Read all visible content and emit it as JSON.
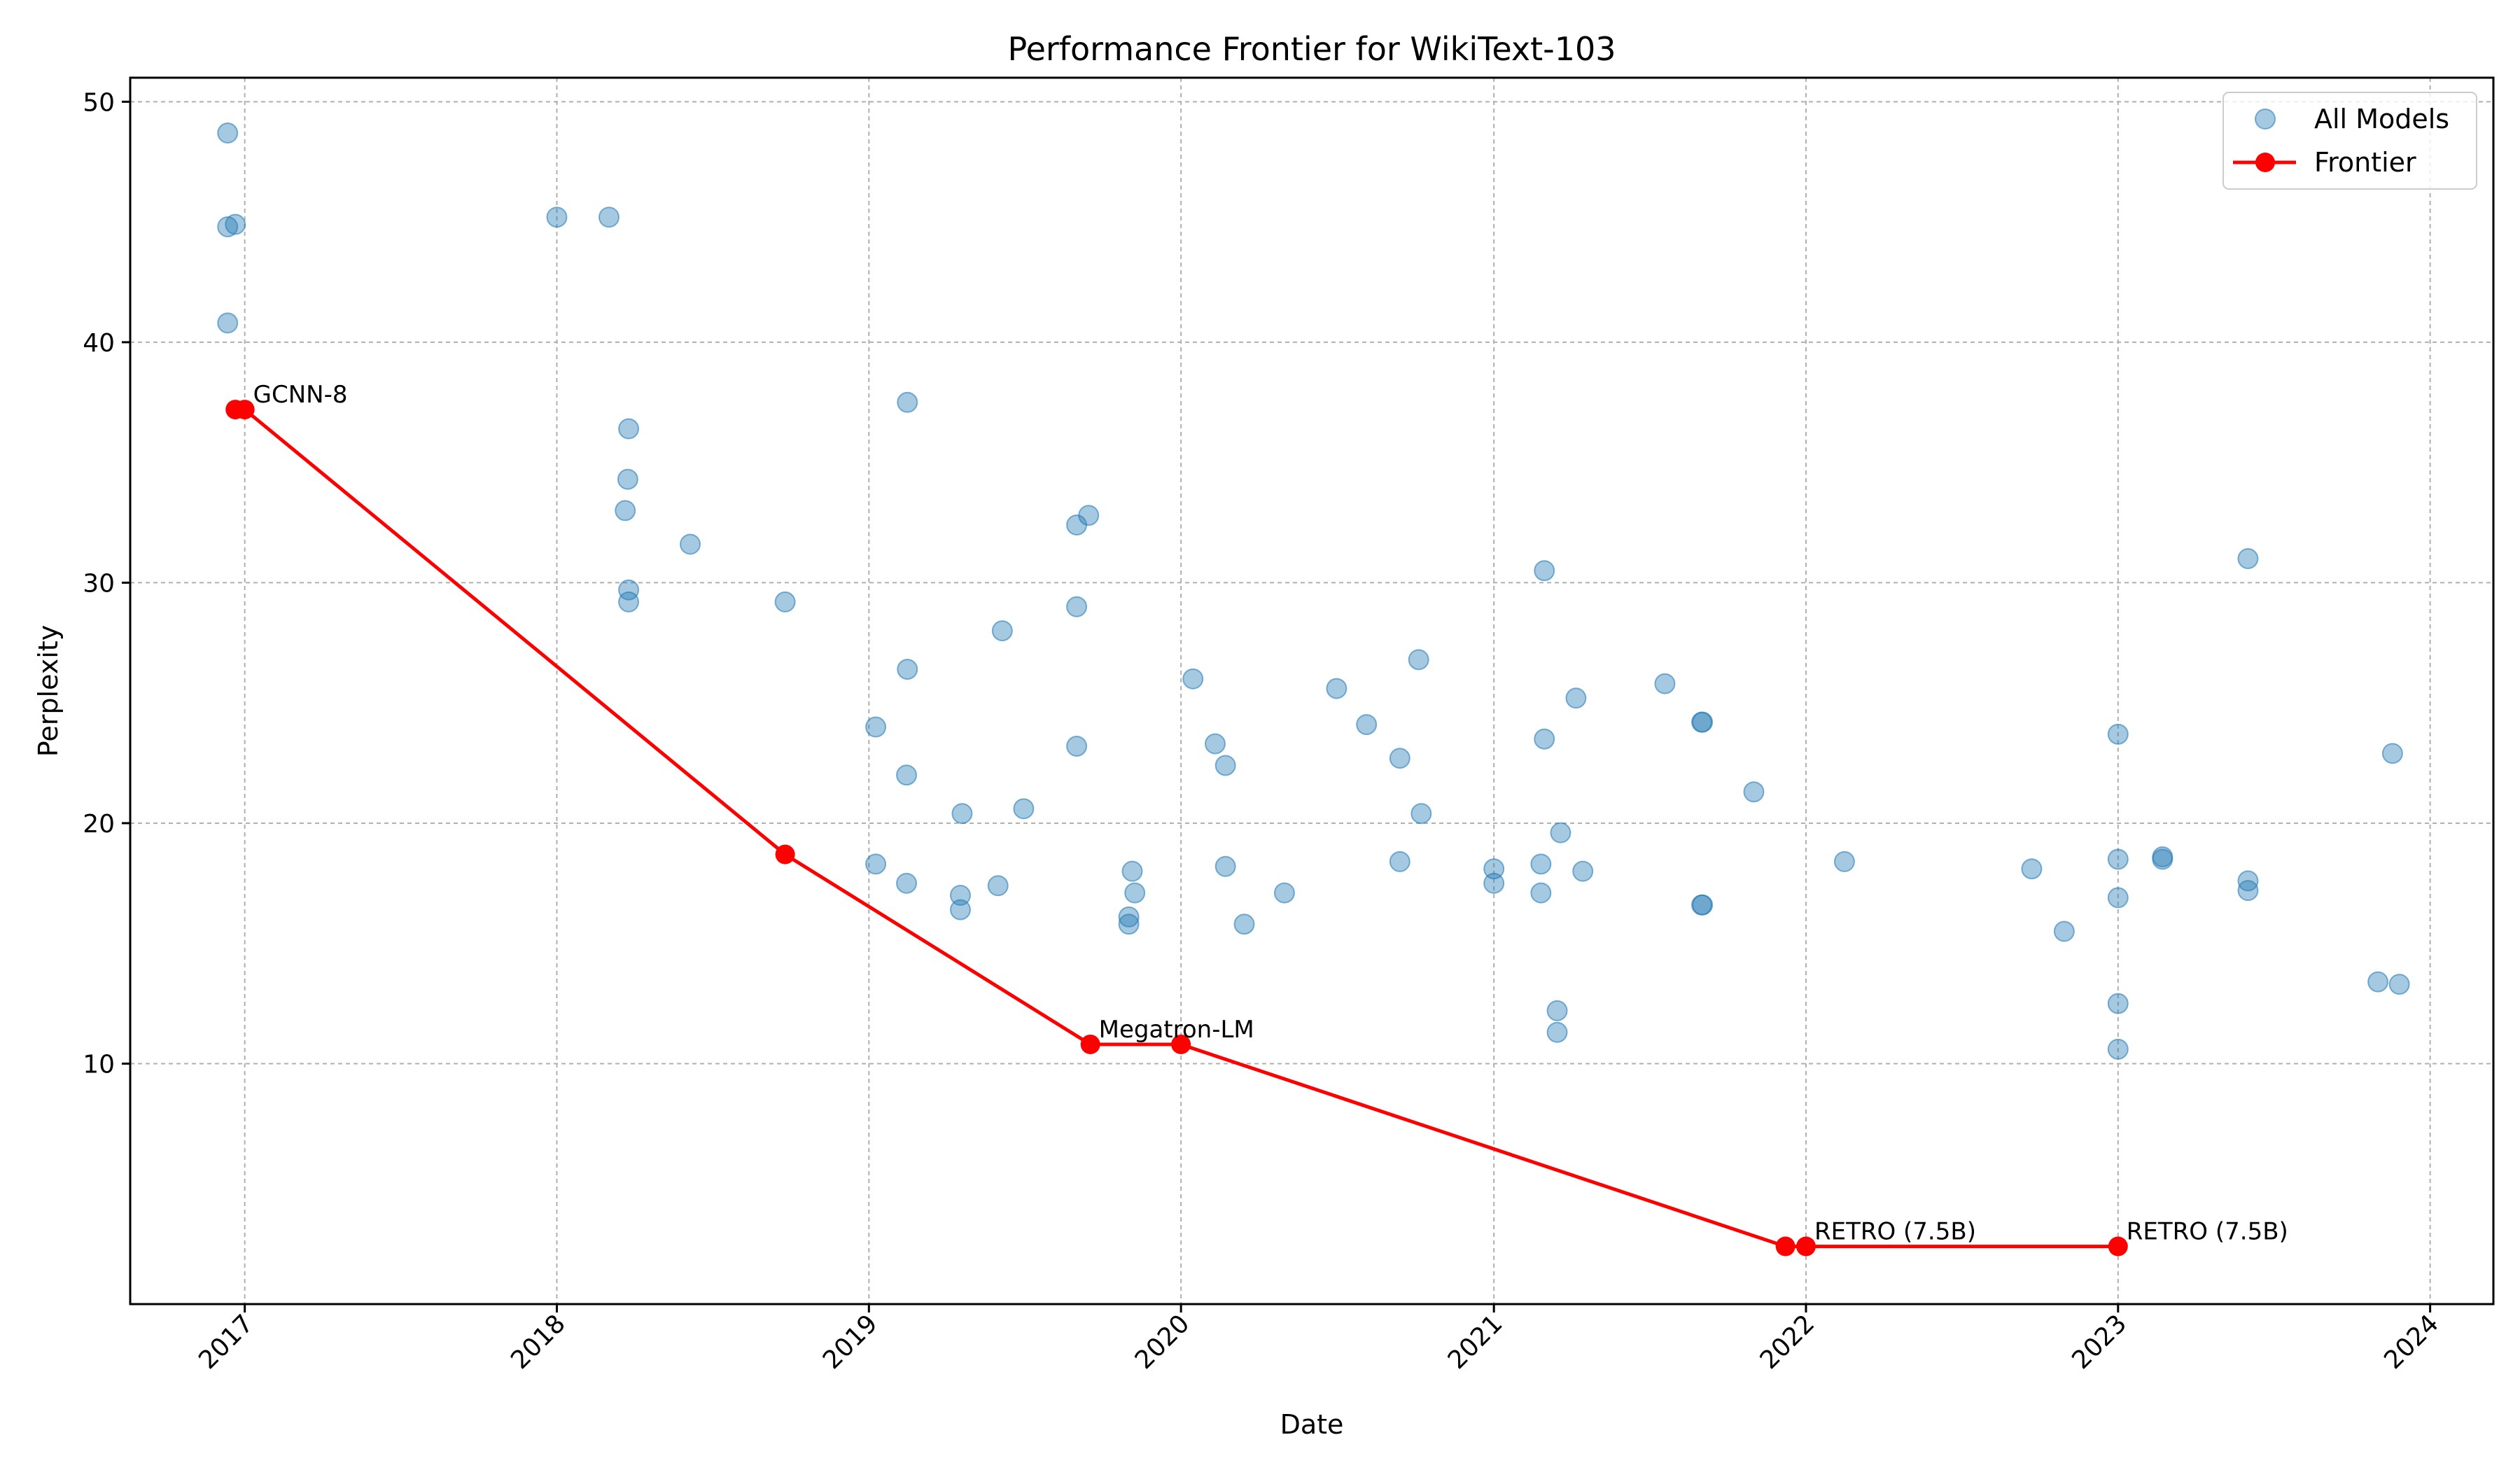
{
  "chart_data": {
    "type": "scatter",
    "title": "Performance Frontier for WikiText-103",
    "xlabel": "Date",
    "ylabel": "Perplexity",
    "xlim": [
      "2016-08-20",
      "2024-03-15"
    ],
    "ylim": [
      0,
      51
    ],
    "x_ticks": [
      "2017",
      "2018",
      "2019",
      "2020",
      "2021",
      "2022",
      "2023",
      "2024"
    ],
    "y_ticks": [
      10,
      20,
      30,
      40,
      50
    ],
    "grid": true,
    "legend_position": "top-right",
    "series": [
      {
        "name": "All Models",
        "kind": "scatter",
        "color": "#1f77b4",
        "points": [
          [
            "2016-12-12",
            48.7
          ],
          [
            "2016-12-12",
            44.8
          ],
          [
            "2016-12-21",
            44.9
          ],
          [
            "2016-12-12",
            40.8
          ],
          [
            "2018-01-01",
            45.2
          ],
          [
            "2018-03-03",
            45.2
          ],
          [
            "2018-03-26",
            36.4
          ],
          [
            "2018-03-25",
            34.3
          ],
          [
            "2018-03-22",
            33.0
          ],
          [
            "2018-03-26",
            29.7
          ],
          [
            "2018-03-26",
            29.2
          ],
          [
            "2018-06-06",
            31.6
          ],
          [
            "2018-09-25",
            29.2
          ],
          [
            "2019-01-09",
            24.0
          ],
          [
            "2019-01-09",
            18.3
          ],
          [
            "2019-02-15",
            37.5
          ],
          [
            "2019-02-15",
            26.4
          ],
          [
            "2019-02-14",
            22.0
          ],
          [
            "2019-02-14",
            17.5
          ],
          [
            "2019-04-20",
            20.4
          ],
          [
            "2019-04-18",
            17.0
          ],
          [
            "2019-04-18",
            16.4
          ],
          [
            "2019-06-06",
            28.0
          ],
          [
            "2019-06-01",
            17.4
          ],
          [
            "2019-07-01",
            20.6
          ],
          [
            "2019-09-01",
            32.4
          ],
          [
            "2019-09-15",
            32.8
          ],
          [
            "2019-09-01",
            29.0
          ],
          [
            "2019-09-01",
            23.2
          ],
          [
            "2019-11-05",
            18.0
          ],
          [
            "2019-11-08",
            17.1
          ],
          [
            "2019-11-01",
            16.1
          ],
          [
            "2019-11-01",
            15.8
          ],
          [
            "2020-01-15",
            26.0
          ],
          [
            "2020-02-10",
            23.3
          ],
          [
            "2020-02-22",
            22.4
          ],
          [
            "2020-02-22",
            18.2
          ],
          [
            "2020-03-15",
            15.8
          ],
          [
            "2020-05-01",
            17.1
          ],
          [
            "2020-07-01",
            25.6
          ],
          [
            "2020-08-05",
            24.1
          ],
          [
            "2020-09-13",
            22.7
          ],
          [
            "2020-09-13",
            18.4
          ],
          [
            "2020-10-05",
            26.8
          ],
          [
            "2020-10-08",
            20.4
          ],
          [
            "2021-01-01",
            18.1
          ],
          [
            "2021-01-01",
            17.5
          ],
          [
            "2021-02-25",
            18.3
          ],
          [
            "2021-02-25",
            17.1
          ],
          [
            "2021-03-01",
            30.5
          ],
          [
            "2021-03-01",
            23.5
          ],
          [
            "2021-03-20",
            19.6
          ],
          [
            "2021-04-07",
            25.2
          ],
          [
            "2021-04-15",
            18.0
          ],
          [
            "2021-03-16",
            12.2
          ],
          [
            "2021-03-16",
            11.3
          ],
          [
            "2021-07-20",
            25.8
          ],
          [
            "2021-09-01",
            24.2
          ],
          [
            "2021-09-02",
            24.2
          ],
          [
            "2021-09-01",
            16.6
          ],
          [
            "2021-09-02",
            16.6
          ],
          [
            "2021-11-01",
            21.3
          ],
          [
            "2022-02-15",
            18.4
          ],
          [
            "2022-09-22",
            18.1
          ],
          [
            "2022-10-30",
            15.5
          ],
          [
            "2023-01-01",
            23.7
          ],
          [
            "2023-01-01",
            18.5
          ],
          [
            "2023-01-01",
            16.9
          ],
          [
            "2023-01-01",
            12.5
          ],
          [
            "2023-01-01",
            10.6
          ],
          [
            "2023-02-22",
            18.6
          ],
          [
            "2023-02-22",
            18.5
          ],
          [
            "2023-06-02",
            31.0
          ],
          [
            "2023-06-02",
            17.6
          ],
          [
            "2023-06-02",
            17.2
          ],
          [
            "2023-11-01",
            13.4
          ],
          [
            "2023-11-18",
            22.9
          ],
          [
            "2023-11-26",
            13.3
          ]
        ]
      },
      {
        "name": "Frontier",
        "kind": "line",
        "color": "#ff0000",
        "points": [
          [
            "2016-12-21",
            37.2
          ],
          [
            "2017-01-01",
            37.2
          ],
          [
            "2018-09-25",
            18.7
          ],
          [
            "2019-09-17",
            10.8
          ],
          [
            "2020-01-01",
            10.8
          ],
          [
            "2021-12-08",
            2.4
          ],
          [
            "2022-01-01",
            2.4
          ],
          [
            "2023-01-01",
            2.4
          ]
        ]
      }
    ],
    "annotations": [
      {
        "text": "GCNN-8",
        "x": "2017-01-01",
        "y": 37.2
      },
      {
        "text": "Megatron-LM",
        "x": "2019-09-17",
        "y": 10.8
      },
      {
        "text": "RETRO (7.5B)",
        "x": "2022-01-01",
        "y": 2.4
      },
      {
        "text": "RETRO (7.5B)",
        "x": "2023-01-01",
        "y": 2.4
      }
    ]
  }
}
